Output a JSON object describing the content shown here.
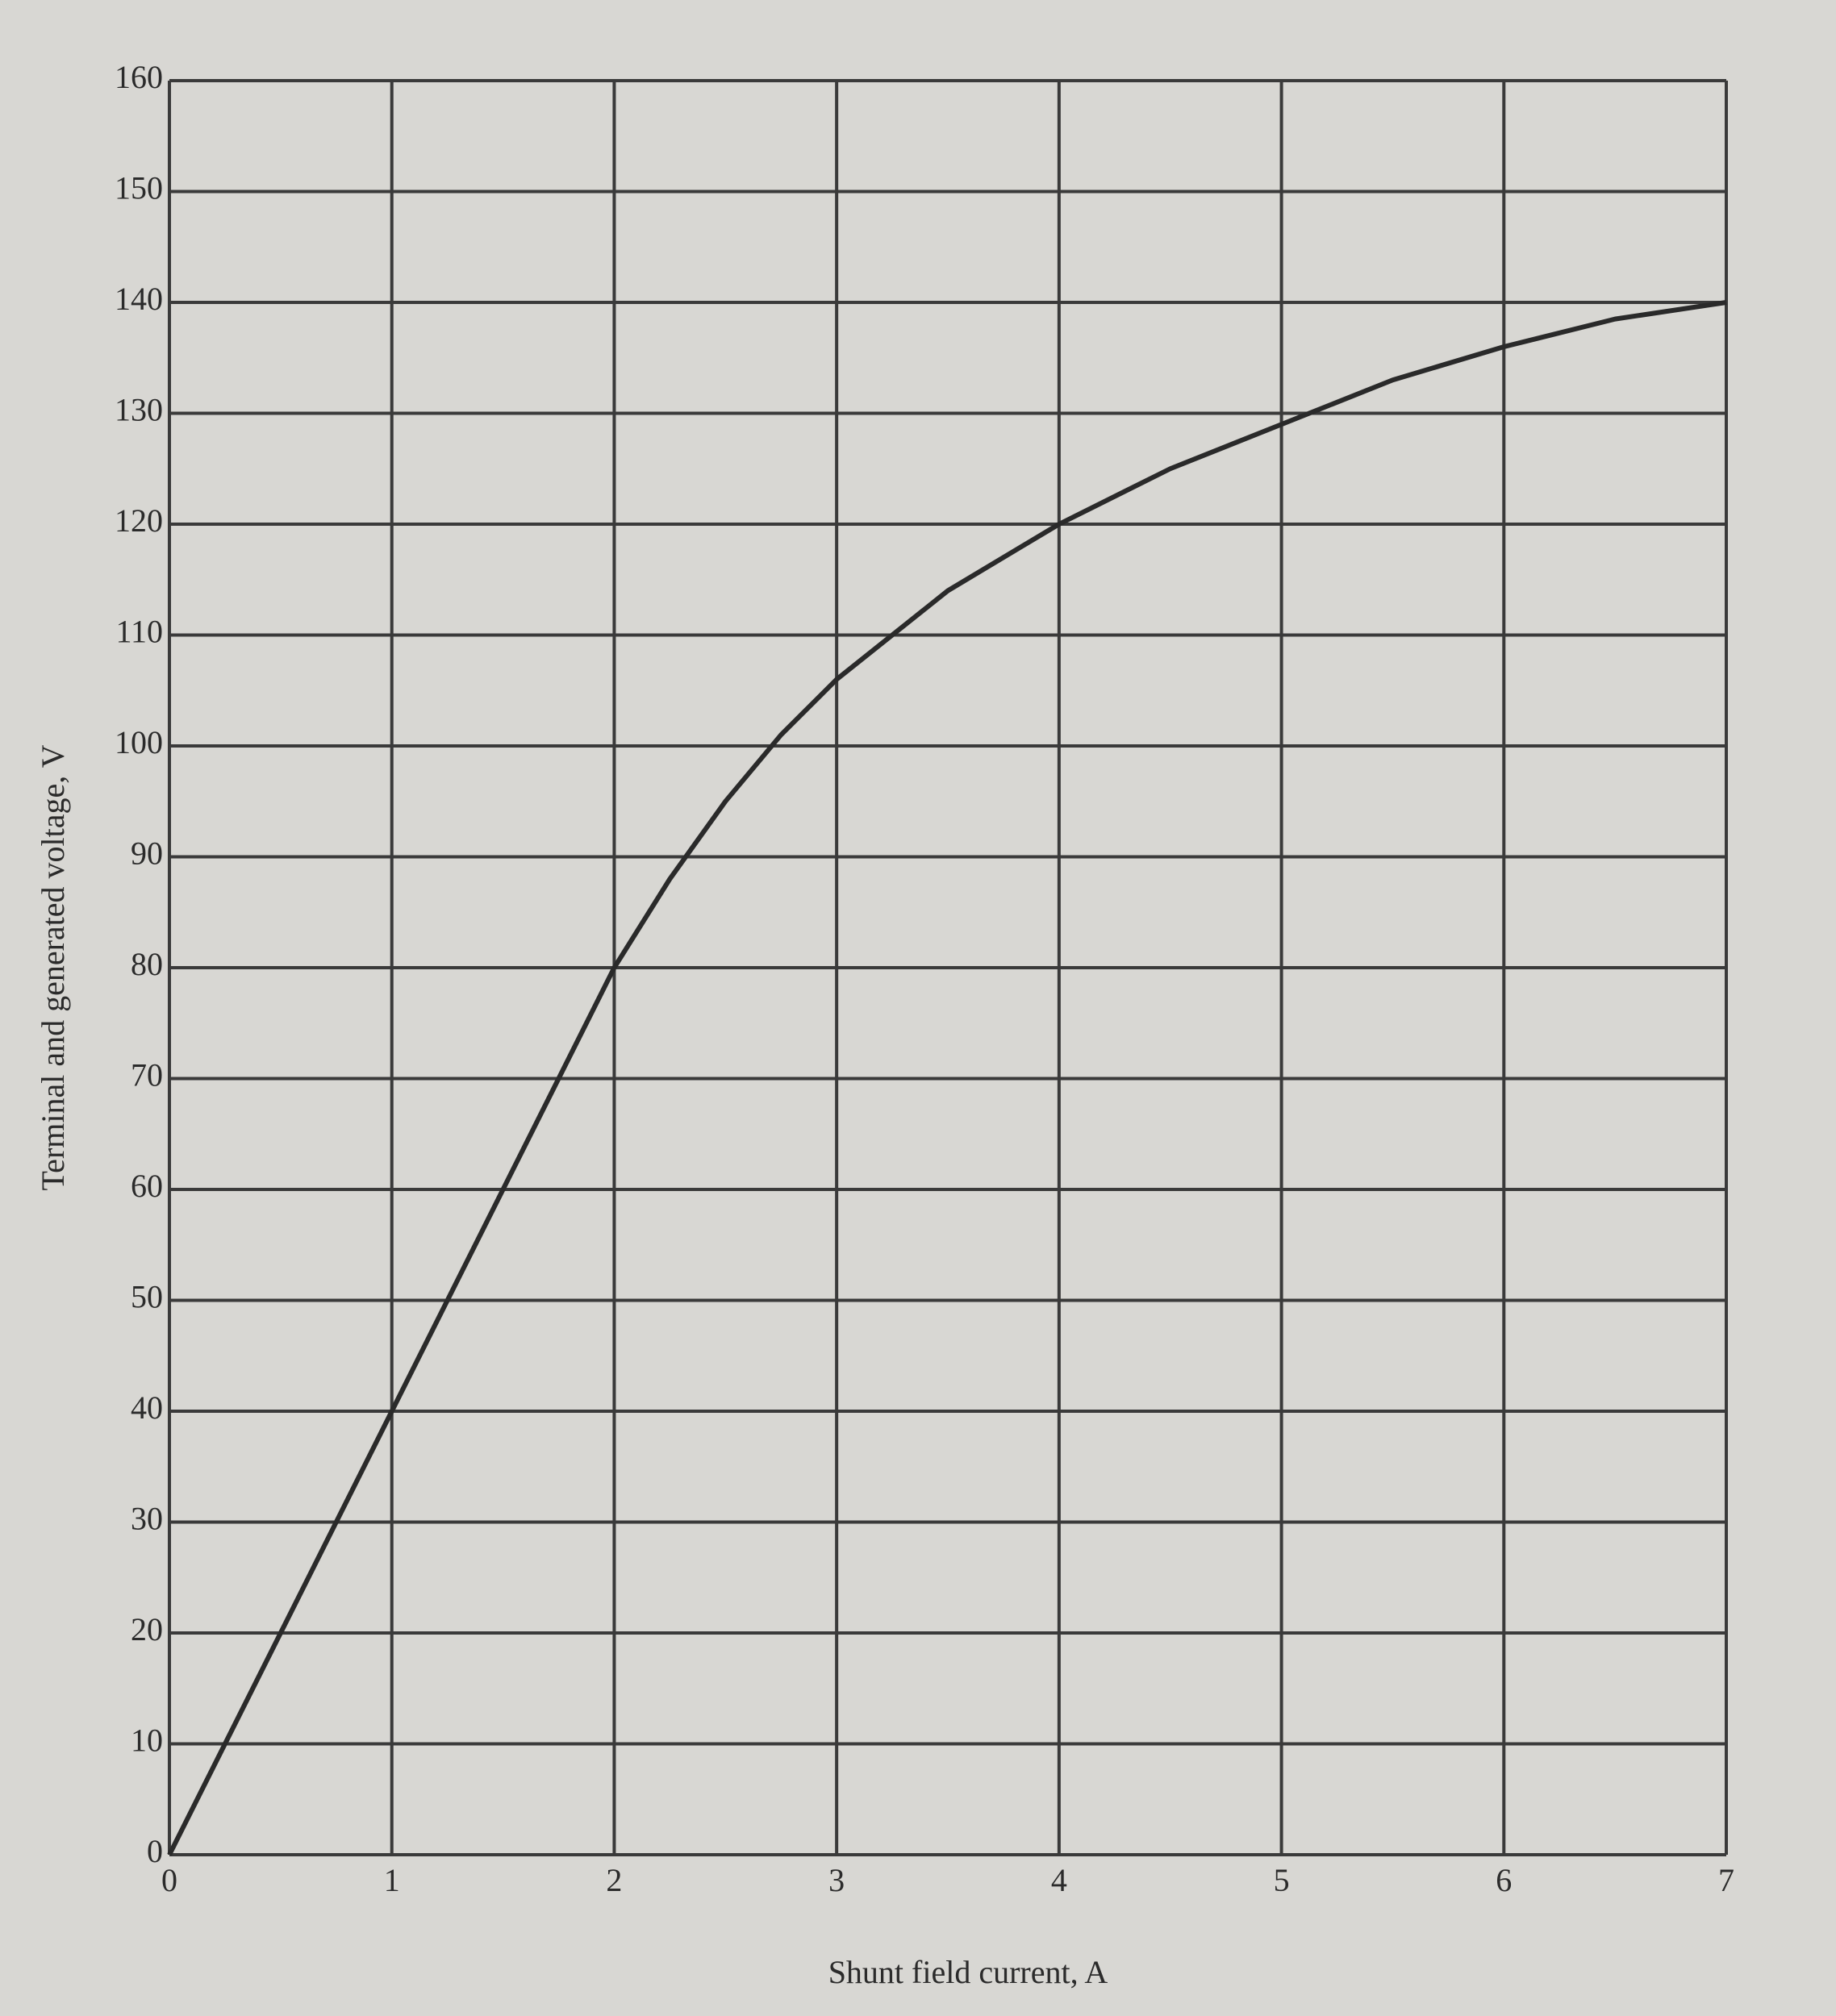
{
  "chart_data": {
    "type": "line",
    "x_label": "Shunt field current, A",
    "y_label": "Terminal and generated voltage, V",
    "x": [
      0,
      0.5,
      1,
      1.5,
      2,
      2.25,
      2.5,
      2.75,
      3,
      3.5,
      4,
      4.5,
      5,
      5.5,
      6,
      6.5,
      7
    ],
    "values": [
      0,
      20,
      40,
      60,
      80,
      88,
      95,
      101,
      106,
      114,
      120,
      125,
      129,
      133,
      136,
      138.5,
      140
    ],
    "color": "#2a2a2a",
    "xlim": [
      0,
      7
    ],
    "xticks": [
      0,
      1,
      2,
      3,
      4,
      5,
      6,
      7
    ],
    "ylim": [
      0,
      160
    ],
    "yticks": [
      0,
      10,
      20,
      30,
      40,
      50,
      60,
      70,
      80,
      90,
      100,
      110,
      120,
      130,
      140,
      150,
      160
    ],
    "grid": true
  }
}
